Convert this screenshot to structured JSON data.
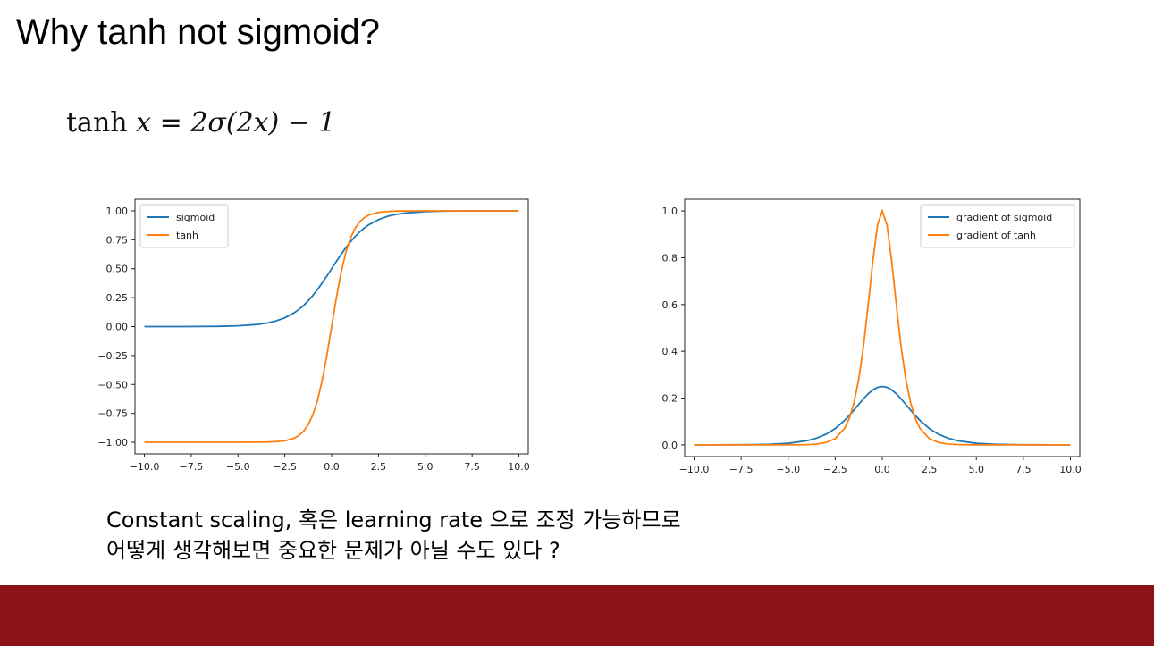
{
  "slide": {
    "title": "Why tanh not sigmoid?",
    "formula": {
      "lhs_fn": "tanh",
      "lhs_var": "x",
      "rhs": "= 2σ(2x) − 1"
    },
    "caption_lines": [
      "Constant scaling,  혹은  learning rate 으로 조정 가능하므로",
      "어떻게 생각해보면 중요한 문제가 아닐 수도 있다 ?"
    ],
    "footer_color": "#8b1316"
  },
  "chart_data": [
    {
      "type": "line",
      "title": "",
      "xlabel": "",
      "ylabel": "",
      "xlim": [
        -10.5,
        10.5
      ],
      "ylim": [
        -1.1,
        1.1
      ],
      "x_ticks": [
        -10.0,
        -7.5,
        -5.0,
        -2.5,
        0.0,
        2.5,
        5.0,
        7.5,
        10.0
      ],
      "x_tick_labels": [
        "−10.0",
        "−7.5",
        "−5.0",
        "−2.5",
        "0.0",
        "2.5",
        "5.0",
        "7.5",
        "10.0"
      ],
      "y_ticks": [
        1.0,
        0.75,
        0.5,
        0.25,
        0.0,
        -0.25,
        -0.5,
        -0.75,
        -1.0
      ],
      "y_tick_labels": [
        "1.00",
        "0.75",
        "0.50",
        "0.25",
        "0.00",
        "−0.25",
        "−0.50",
        "−0.75",
        "−1.00"
      ],
      "grid": false,
      "legend_position": "top-left",
      "x": [
        -10,
        -9,
        -8,
        -7,
        -6,
        -5,
        -4,
        -3.5,
        -3,
        -2.5,
        -2,
        -1.75,
        -1.5,
        -1.25,
        -1,
        -0.75,
        -0.5,
        -0.25,
        0,
        0.25,
        0.5,
        0.75,
        1,
        1.25,
        1.5,
        1.75,
        2,
        2.5,
        3,
        3.5,
        4,
        5,
        6,
        7,
        8,
        9,
        10
      ],
      "series": [
        {
          "name": "sigmoid",
          "color": "#1f77b4",
          "values": [
            0.0,
            0.0001,
            0.0003,
            0.0009,
            0.0025,
            0.0067,
            0.018,
            0.029,
            0.047,
            0.076,
            0.119,
            0.148,
            0.182,
            0.223,
            0.269,
            0.321,
            0.378,
            0.438,
            0.5,
            0.562,
            0.622,
            0.679,
            0.731,
            0.777,
            0.818,
            0.852,
            0.881,
            0.924,
            0.953,
            0.971,
            0.982,
            0.993,
            0.998,
            0.999,
            1.0,
            1.0,
            1.0
          ]
        },
        {
          "name": "tanh",
          "color": "#ff7f0e",
          "values": [
            -1.0,
            -1.0,
            -1.0,
            -1.0,
            -1.0,
            -1.0,
            -0.999,
            -0.998,
            -0.995,
            -0.987,
            -0.964,
            -0.941,
            -0.905,
            -0.848,
            -0.762,
            -0.635,
            -0.462,
            -0.245,
            0.0,
            0.245,
            0.462,
            0.635,
            0.762,
            0.848,
            0.905,
            0.941,
            0.964,
            0.987,
            0.995,
            0.998,
            0.999,
            1.0,
            1.0,
            1.0,
            1.0,
            1.0,
            1.0
          ]
        }
      ]
    },
    {
      "type": "line",
      "title": "",
      "xlabel": "",
      "ylabel": "",
      "xlim": [
        -10.5,
        10.5
      ],
      "ylim": [
        -0.05,
        1.05
      ],
      "x_ticks": [
        -10.0,
        -7.5,
        -5.0,
        -2.5,
        0.0,
        2.5,
        5.0,
        7.5,
        10.0
      ],
      "x_tick_labels": [
        "−10.0",
        "−7.5",
        "−5.0",
        "−2.5",
        "0.0",
        "2.5",
        "5.0",
        "7.5",
        "10.0"
      ],
      "y_ticks": [
        1.0,
        0.8,
        0.6,
        0.4,
        0.2,
        0.0
      ],
      "y_tick_labels": [
        "1.0",
        "0.8",
        "0.6",
        "0.4",
        "0.2",
        "0.0"
      ],
      "grid": false,
      "legend_position": "top-right",
      "x": [
        -10,
        -9,
        -8,
        -7,
        -6,
        -5,
        -4,
        -3.5,
        -3,
        -2.5,
        -2,
        -1.75,
        -1.5,
        -1.25,
        -1,
        -0.75,
        -0.5,
        -0.25,
        0,
        0.25,
        0.5,
        0.75,
        1,
        1.25,
        1.5,
        1.75,
        2,
        2.5,
        3,
        3.5,
        4,
        5,
        6,
        7,
        8,
        9,
        10
      ],
      "series": [
        {
          "name": "gradient of sigmoid",
          "color": "#1f77b4",
          "values": [
            0.0,
            0.0001,
            0.0003,
            0.0009,
            0.0025,
            0.0066,
            0.0177,
            0.0285,
            0.0452,
            0.0701,
            0.105,
            0.126,
            0.149,
            0.173,
            0.197,
            0.218,
            0.235,
            0.246,
            0.25,
            0.246,
            0.235,
            0.218,
            0.197,
            0.173,
            0.149,
            0.126,
            0.105,
            0.0701,
            0.0452,
            0.0285,
            0.0177,
            0.0066,
            0.0025,
            0.0009,
            0.0003,
            0.0001,
            0.0
          ]
        },
        {
          "name": "gradient of tanh",
          "color": "#ff7f0e",
          "values": [
            0.0,
            0.0,
            0.0,
            0.0,
            0.0,
            0.0002,
            0.0013,
            0.0036,
            0.0099,
            0.0266,
            0.0707,
            0.114,
            0.181,
            0.281,
            0.42,
            0.597,
            0.787,
            0.94,
            1.0,
            0.94,
            0.787,
            0.597,
            0.42,
            0.281,
            0.181,
            0.114,
            0.0707,
            0.0266,
            0.0099,
            0.0036,
            0.0013,
            0.0002,
            0.0,
            0.0,
            0.0,
            0.0,
            0.0
          ]
        }
      ]
    }
  ]
}
